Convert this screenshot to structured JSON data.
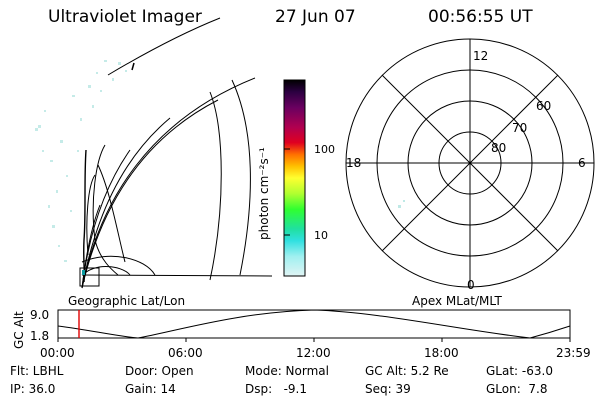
{
  "header": {
    "title": "Ultraviolet Imager",
    "date": "27 Jun 07",
    "time": "00:56:55 UT"
  },
  "left_panel": {
    "caption": "Geographic Lat/Lon"
  },
  "right_panel": {
    "caption": "Apex MLat/MLT",
    "mlt_labels": {
      "top": "12",
      "left": "18",
      "right": "6",
      "bottom": "0"
    },
    "mlat_labels": [
      "60",
      "70",
      "80"
    ]
  },
  "colorbar": {
    "unit_label": "photon cm⁻²s⁻¹",
    "ticks": [
      "100",
      "10"
    ],
    "colors": [
      "#000000",
      "#2b0040",
      "#6a0060",
      "#b00050",
      "#e00020",
      "#ff7000",
      "#ffc000",
      "#ffff30",
      "#b0ff30",
      "#30ff30",
      "#20e0a0",
      "#30e0e0",
      "#a0f0f0",
      "#e0f4f4"
    ]
  },
  "orbit_strip": {
    "axis_label": "GC Alt",
    "y_ticks": [
      "9.0",
      "1.8"
    ],
    "x_ticks": [
      "00:00",
      "06:00",
      "12:00",
      "18:00",
      "23:59"
    ],
    "marker_color": "#e00000"
  },
  "status": {
    "row1": [
      "Flt: LBHL",
      "Door: Open",
      "Mode: Normal",
      "GC Alt: 5.2 Re",
      "GLat: -63.0"
    ],
    "row2": [
      "IP: 36.0",
      "Gain: 14",
      "Dsp:   -9.1",
      "Seq: 39",
      "GLon:  7.8"
    ]
  }
}
